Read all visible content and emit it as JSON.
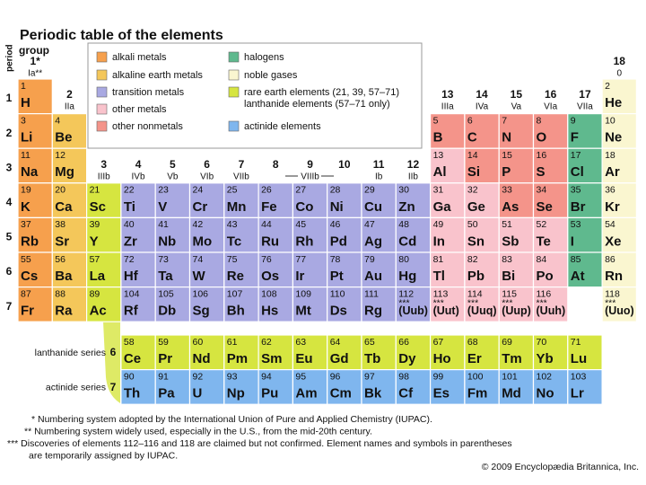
{
  "title": "Periodic table of the elements",
  "period_label": "period",
  "group_label": "group",
  "legend": [
    {
      "label": "alkali metals",
      "color": "#f6a04d"
    },
    {
      "label": "alkaline earth metals",
      "color": "#f4c75a"
    },
    {
      "label": "transition metals",
      "color": "#a9a9e2"
    },
    {
      "label": "other metals",
      "color": "#f9c3cc"
    },
    {
      "label": "other nonmetals",
      "color": "#f4948a"
    },
    {
      "label": "halogens",
      "color": "#5fb98e"
    },
    {
      "label": "noble gases",
      "color": "#faf6d0"
    },
    {
      "label": "rare earth elements (21, 39, 57–71)",
      "sublabel": "lanthanide elements (57–71 only)",
      "color": "#d6e540"
    },
    {
      "label": "actinide elements",
      "color": "#7fb6ee"
    }
  ],
  "groups": [
    {
      "number": "1*",
      "roman": "Ia**"
    },
    {
      "number": 2,
      "roman": "IIa"
    },
    {
      "number": 3,
      "roman": "IIIb"
    },
    {
      "number": 4,
      "roman": "IVb"
    },
    {
      "number": 5,
      "roman": "Vb"
    },
    {
      "number": 6,
      "roman": "VIb"
    },
    {
      "number": 7,
      "roman": "VIIb"
    },
    {
      "number": 8
    },
    {
      "number": 9,
      "roman": "VIIIb"
    },
    {
      "number": 10
    },
    {
      "number": 11,
      "roman": "Ib"
    },
    {
      "number": 12,
      "roman": "IIb"
    },
    {
      "number": 13,
      "roman": "IIIa"
    },
    {
      "number": 14,
      "roman": "IVa"
    },
    {
      "number": 15,
      "roman": "Va"
    },
    {
      "number": 16,
      "roman": "VIa"
    },
    {
      "number": 17,
      "roman": "VIIa"
    },
    {
      "number": 18,
      "roman": "0"
    }
  ],
  "periods": [
    1,
    2,
    3,
    4,
    5,
    6,
    7
  ],
  "table": [
    [
      {
        "n": 1,
        "s": "H",
        "color": "#f6a04d"
      },
      null,
      null,
      null,
      null,
      null,
      null,
      null,
      null,
      null,
      null,
      null,
      null,
      null,
      null,
      null,
      null,
      {
        "n": 2,
        "s": "He",
        "color": "#faf6d0"
      }
    ],
    [
      {
        "n": 3,
        "s": "Li",
        "color": "#f6a04d"
      },
      {
        "n": 4,
        "s": "Be",
        "color": "#f4c75a"
      },
      null,
      null,
      null,
      null,
      null,
      null,
      null,
      null,
      null,
      null,
      {
        "n": 5,
        "s": "B",
        "color": "#f4948a"
      },
      {
        "n": 6,
        "s": "C",
        "color": "#f4948a"
      },
      {
        "n": 7,
        "s": "N",
        "color": "#f4948a"
      },
      {
        "n": 8,
        "s": "O",
        "color": "#f4948a"
      },
      {
        "n": 9,
        "s": "F",
        "color": "#5fb98e"
      },
      {
        "n": 10,
        "s": "Ne",
        "color": "#faf6d0"
      }
    ],
    [
      {
        "n": 11,
        "s": "Na",
        "color": "#f6a04d"
      },
      {
        "n": 12,
        "s": "Mg",
        "color": "#f4c75a"
      },
      null,
      null,
      null,
      null,
      null,
      null,
      null,
      null,
      null,
      null,
      {
        "n": 13,
        "s": "Al",
        "color": "#f9c3cc"
      },
      {
        "n": 14,
        "s": "Si",
        "color": "#f4948a"
      },
      {
        "n": 15,
        "s": "P",
        "color": "#f4948a"
      },
      {
        "n": 16,
        "s": "S",
        "color": "#f4948a"
      },
      {
        "n": 17,
        "s": "Cl",
        "color": "#5fb98e"
      },
      {
        "n": 18,
        "s": "Ar",
        "color": "#faf6d0"
      }
    ],
    [
      {
        "n": 19,
        "s": "K",
        "color": "#f6a04d"
      },
      {
        "n": 20,
        "s": "Ca",
        "color": "#f4c75a"
      },
      {
        "n": 21,
        "s": "Sc",
        "color": "#d6e540"
      },
      {
        "n": 22,
        "s": "Ti",
        "color": "#a9a9e2"
      },
      {
        "n": 23,
        "s": "V",
        "color": "#a9a9e2"
      },
      {
        "n": 24,
        "s": "Cr",
        "color": "#a9a9e2"
      },
      {
        "n": 25,
        "s": "Mn",
        "color": "#a9a9e2"
      },
      {
        "n": 26,
        "s": "Fe",
        "color": "#a9a9e2"
      },
      {
        "n": 27,
        "s": "Co",
        "color": "#a9a9e2"
      },
      {
        "n": 28,
        "s": "Ni",
        "color": "#a9a9e2"
      },
      {
        "n": 29,
        "s": "Cu",
        "color": "#a9a9e2"
      },
      {
        "n": 30,
        "s": "Zn",
        "color": "#a9a9e2"
      },
      {
        "n": 31,
        "s": "Ga",
        "color": "#f9c3cc"
      },
      {
        "n": 32,
        "s": "Ge",
        "color": "#f9c3cc"
      },
      {
        "n": 33,
        "s": "As",
        "color": "#f4948a"
      },
      {
        "n": 34,
        "s": "Se",
        "color": "#f4948a"
      },
      {
        "n": 35,
        "s": "Br",
        "color": "#5fb98e"
      },
      {
        "n": 36,
        "s": "Kr",
        "color": "#faf6d0"
      }
    ],
    [
      {
        "n": 37,
        "s": "Rb",
        "color": "#f6a04d"
      },
      {
        "n": 38,
        "s": "Sr",
        "color": "#f4c75a"
      },
      {
        "n": 39,
        "s": "Y",
        "color": "#d6e540"
      },
      {
        "n": 40,
        "s": "Zr",
        "color": "#a9a9e2"
      },
      {
        "n": 41,
        "s": "Nb",
        "color": "#a9a9e2"
      },
      {
        "n": 42,
        "s": "Mo",
        "color": "#a9a9e2"
      },
      {
        "n": 43,
        "s": "Tc",
        "color": "#a9a9e2"
      },
      {
        "n": 44,
        "s": "Ru",
        "color": "#a9a9e2"
      },
      {
        "n": 45,
        "s": "Rh",
        "color": "#a9a9e2"
      },
      {
        "n": 46,
        "s": "Pd",
        "color": "#a9a9e2"
      },
      {
        "n": 47,
        "s": "Ag",
        "color": "#a9a9e2"
      },
      {
        "n": 48,
        "s": "Cd",
        "color": "#a9a9e2"
      },
      {
        "n": 49,
        "s": "In",
        "color": "#f9c3cc"
      },
      {
        "n": 50,
        "s": "Sn",
        "color": "#f9c3cc"
      },
      {
        "n": 51,
        "s": "Sb",
        "color": "#f9c3cc"
      },
      {
        "n": 52,
        "s": "Te",
        "color": "#f9c3cc"
      },
      {
        "n": 53,
        "s": "I",
        "color": "#5fb98e"
      },
      {
        "n": 54,
        "s": "Xe",
        "color": "#faf6d0"
      }
    ],
    [
      {
        "n": 55,
        "s": "Cs",
        "color": "#f6a04d"
      },
      {
        "n": 56,
        "s": "Ba",
        "color": "#f4c75a"
      },
      {
        "n": 57,
        "s": "La",
        "color": "#d6e540"
      },
      {
        "n": 72,
        "s": "Hf",
        "color": "#a9a9e2"
      },
      {
        "n": 73,
        "s": "Ta",
        "color": "#a9a9e2"
      },
      {
        "n": 74,
        "s": "W",
        "color": "#a9a9e2"
      },
      {
        "n": 75,
        "s": "Re",
        "color": "#a9a9e2"
      },
      {
        "n": 76,
        "s": "Os",
        "color": "#a9a9e2"
      },
      {
        "n": 77,
        "s": "Ir",
        "color": "#a9a9e2"
      },
      {
        "n": 78,
        "s": "Pt",
        "color": "#a9a9e2"
      },
      {
        "n": 79,
        "s": "Au",
        "color": "#a9a9e2"
      },
      {
        "n": 80,
        "s": "Hg",
        "color": "#a9a9e2"
      },
      {
        "n": 81,
        "s": "Tl",
        "color": "#f9c3cc"
      },
      {
        "n": 82,
        "s": "Pb",
        "color": "#f9c3cc"
      },
      {
        "n": 83,
        "s": "Bi",
        "color": "#f9c3cc"
      },
      {
        "n": 84,
        "s": "Po",
        "color": "#f9c3cc"
      },
      {
        "n": 85,
        "s": "At",
        "color": "#5fb98e"
      },
      {
        "n": 86,
        "s": "Rn",
        "color": "#faf6d0"
      }
    ],
    [
      {
        "n": 87,
        "s": "Fr",
        "color": "#f6a04d"
      },
      {
        "n": 88,
        "s": "Ra",
        "color": "#f4c75a"
      },
      {
        "n": 89,
        "s": "Ac",
        "color": "#d6e540"
      },
      {
        "n": 104,
        "s": "Rf",
        "color": "#a9a9e2"
      },
      {
        "n": 105,
        "s": "Db",
        "color": "#a9a9e2"
      },
      {
        "n": 106,
        "s": "Sg",
        "color": "#a9a9e2"
      },
      {
        "n": 107,
        "s": "Bh",
        "color": "#a9a9e2"
      },
      {
        "n": 108,
        "s": "Hs",
        "color": "#a9a9e2"
      },
      {
        "n": 109,
        "s": "Mt",
        "color": "#a9a9e2"
      },
      {
        "n": 110,
        "s": "Ds",
        "color": "#a9a9e2"
      },
      {
        "n": 111,
        "s": "Rg",
        "color": "#a9a9e2"
      },
      {
        "n": 112,
        "note": "***",
        "s": "(Uub)",
        "color": "#a9a9e2"
      },
      {
        "n": 113,
        "note": "***",
        "s": "(Uut)",
        "color": "#f9c3cc"
      },
      {
        "n": 114,
        "note": "***",
        "s": "(Uuq)",
        "color": "#f9c3cc"
      },
      {
        "n": 115,
        "note": "***",
        "s": "(Uup)",
        "color": "#f9c3cc"
      },
      {
        "n": 116,
        "note": "***",
        "s": "(Uuh)",
        "color": "#f9c3cc"
      },
      null,
      {
        "n": 118,
        "note": "***",
        "s": "(Uuo)",
        "color": "#faf6d0"
      }
    ]
  ],
  "series": [
    {
      "label": "lanthanide series",
      "period": 6,
      "elements": [
        {
          "n": 58,
          "s": "Ce"
        },
        {
          "n": 59,
          "s": "Pr"
        },
        {
          "n": 60,
          "s": "Nd"
        },
        {
          "n": 61,
          "s": "Pm"
        },
        {
          "n": 62,
          "s": "Sm"
        },
        {
          "n": 63,
          "s": "Eu"
        },
        {
          "n": 64,
          "s": "Gd"
        },
        {
          "n": 65,
          "s": "Tb"
        },
        {
          "n": 66,
          "s": "Dy"
        },
        {
          "n": 67,
          "s": "Ho"
        },
        {
          "n": 68,
          "s": "Er"
        },
        {
          "n": 69,
          "s": "Tm"
        },
        {
          "n": 70,
          "s": "Yb"
        },
        {
          "n": 71,
          "s": "Lu"
        }
      ],
      "color": "#d6e540"
    },
    {
      "label": "actinide series",
      "period": 7,
      "elements": [
        {
          "n": 90,
          "s": "Th"
        },
        {
          "n": 91,
          "s": "Pa"
        },
        {
          "n": 92,
          "s": "U"
        },
        {
          "n": 93,
          "s": "Np"
        },
        {
          "n": 94,
          "s": "Pu"
        },
        {
          "n": 95,
          "s": "Am"
        },
        {
          "n": 96,
          "s": "Cm"
        },
        {
          "n": 97,
          "s": "Bk"
        },
        {
          "n": 98,
          "s": "Cf"
        },
        {
          "n": 99,
          "s": "Es"
        },
        {
          "n": 100,
          "s": "Fm"
        },
        {
          "n": 101,
          "s": "Md"
        },
        {
          "n": 102,
          "s": "No"
        },
        {
          "n": 103,
          "s": "Lr"
        }
      ],
      "color": "#7fb6ee"
    }
  ],
  "footnotes": [
    "* Numbering system adopted by the International Union of Pure and Applied Chemistry (IUPAC).",
    "** Numbering system widely used, especially in the U.S., from the mid-20th century.",
    "*** Discoveries of elements 112–116 and 118 are claimed but not confirmed. Element names and symbols in parentheses",
    "are temporarily assigned by IUPAC."
  ],
  "copyright": "© 2009 Encyclopædia Britannica, Inc."
}
